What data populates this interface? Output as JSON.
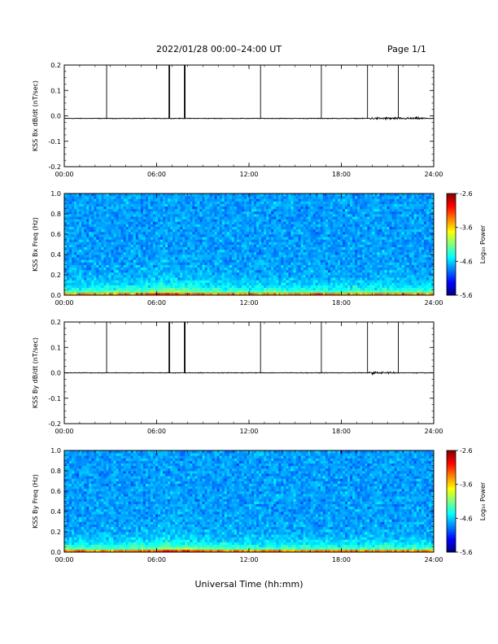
{
  "header": {
    "title": "2022/01/28  00:00–24:00 UT",
    "page": "Page 1/1"
  },
  "xlabel": "Universal Time (hh:mm)",
  "chart_data": [
    {
      "type": "line",
      "ylabel": "KSS Bx dB/dt (nT/sec)",
      "x_ticks": [
        "00:00",
        "06:00",
        "12:00",
        "18:00",
        "24:00"
      ],
      "xlim": [
        0,
        24
      ],
      "ylim": [
        -0.2,
        0.2
      ],
      "y_ticks": [
        "0.2",
        "0.1",
        "0.0",
        "-0.1",
        "-0.2"
      ],
      "baseline": -0.01,
      "spikes_hours": [
        2.75,
        6.8,
        6.85,
        7.8,
        7.85,
        12.75,
        16.7,
        19.7,
        21.7
      ],
      "noisy_interval_hours": [
        19.8,
        23.5
      ]
    },
    {
      "type": "heatmap",
      "ylabel": "KSS Bx Freq (Hz)",
      "x_ticks": [
        "00:00",
        "06:00",
        "12:00",
        "18:00",
        "24:00"
      ],
      "xlim": [
        0,
        24
      ],
      "ylim": [
        0.0,
        1.0
      ],
      "y_ticks": [
        "1.0",
        "0.8",
        "0.6",
        "0.4",
        "0.2",
        "0.0"
      ],
      "colorbar": {
        "label": "Log₁₀ Power",
        "ticks": [
          "-2.6",
          "-3.6",
          "-4.6",
          "-5.6"
        ],
        "range": [
          -5.6,
          -2.6
        ]
      }
    },
    {
      "type": "line",
      "ylabel": "KSS By dB/dt (nT/sec)",
      "x_ticks": [
        "00:00",
        "06:00",
        "12:00",
        "18:00",
        "24:00"
      ],
      "xlim": [
        0,
        24
      ],
      "ylim": [
        -0.2,
        0.2
      ],
      "y_ticks": [
        "0.2",
        "0.1",
        "0.0",
        "-0.1",
        "-0.2"
      ],
      "baseline": 0.0,
      "spikes_hours": [
        2.75,
        6.8,
        6.85,
        7.8,
        7.85,
        12.75,
        16.7,
        19.7,
        21.7
      ],
      "noisy_interval_hours": [
        19.8,
        21.5
      ]
    },
    {
      "type": "heatmap",
      "ylabel": "KSS By Freq (Hz)",
      "x_ticks": [
        "00:00",
        "06:00",
        "12:00",
        "18:00",
        "24:00"
      ],
      "xlim": [
        0,
        24
      ],
      "ylim": [
        0.0,
        1.0
      ],
      "y_ticks": [
        "1.0",
        "0.8",
        "0.6",
        "0.4",
        "0.2",
        "0.0"
      ],
      "colorbar": {
        "label": "Log₁₀ Power",
        "ticks": [
          "-2.6",
          "-3.6",
          "-4.6",
          "-5.6"
        ],
        "range": [
          -5.6,
          -2.6
        ]
      }
    }
  ]
}
